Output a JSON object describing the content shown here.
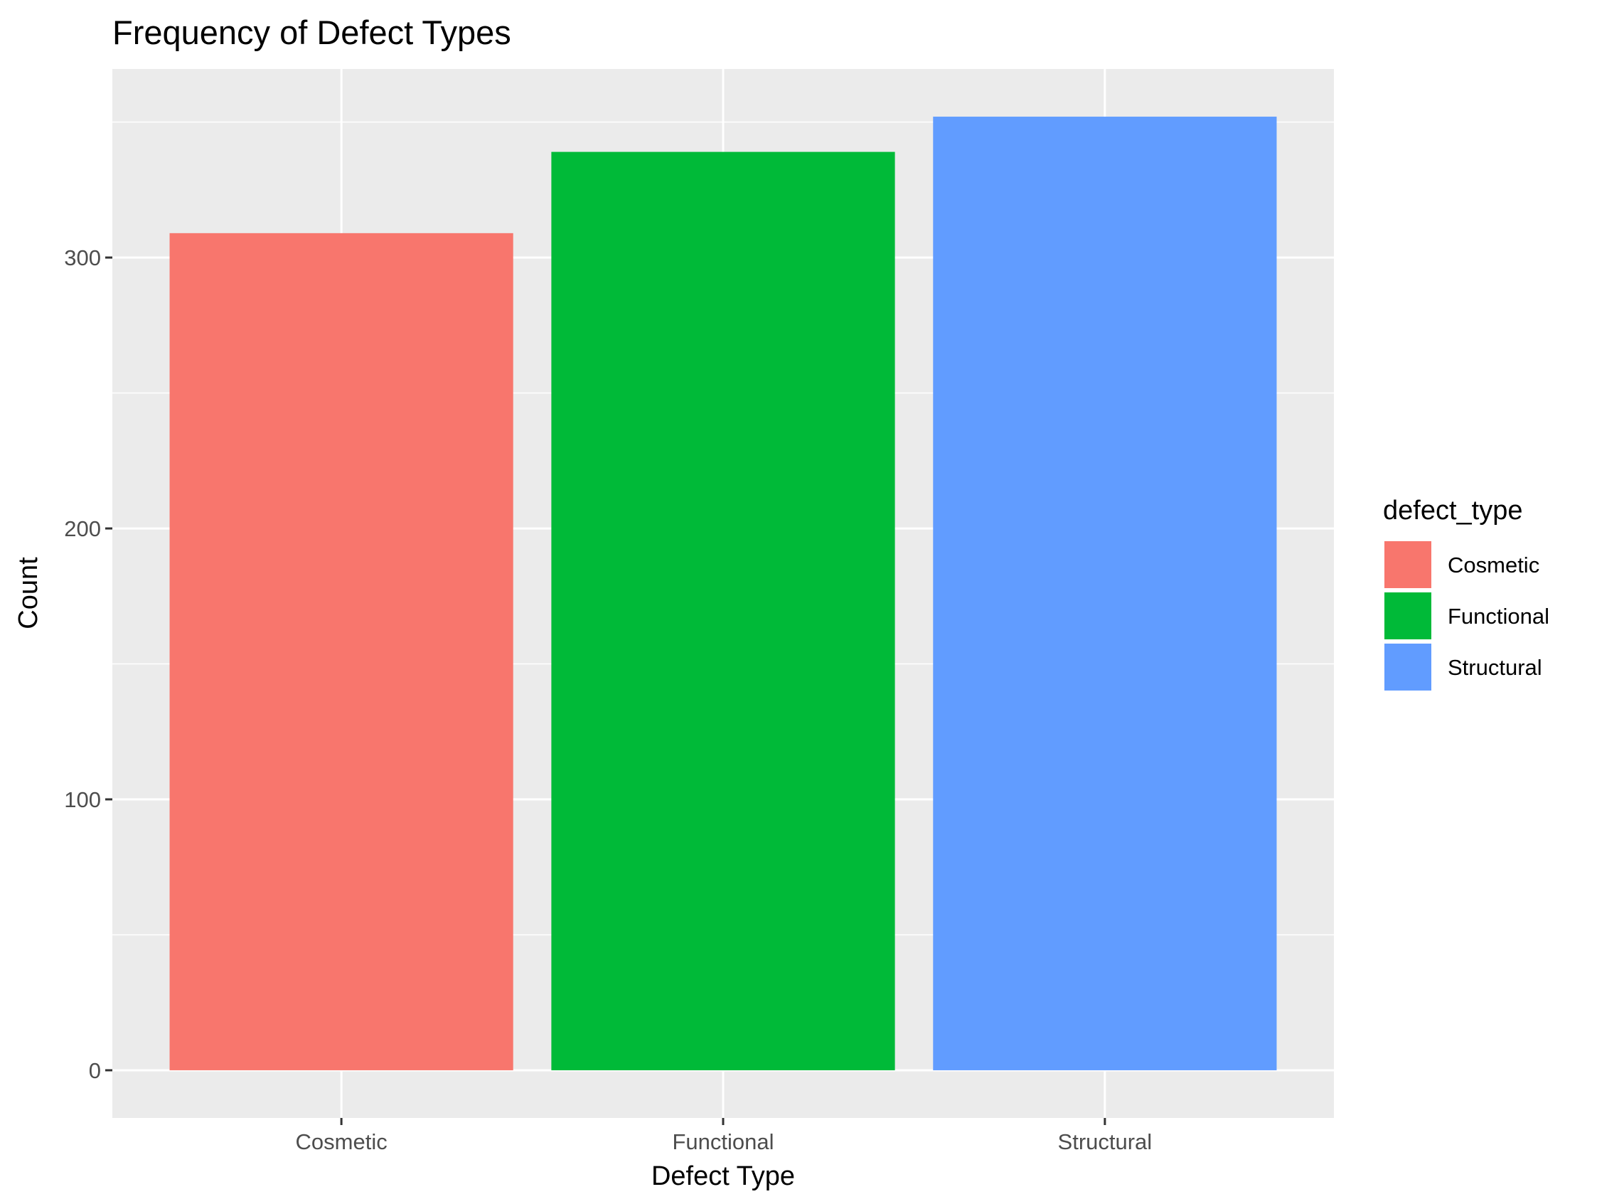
{
  "chart_data": {
    "type": "bar",
    "title": "Frequency of Defect Types",
    "xlabel": "Defect Type",
    "ylabel": "Count",
    "categories": [
      "Cosmetic",
      "Functional",
      "Structural"
    ],
    "values": [
      309,
      339,
      352
    ],
    "colors": [
      "#F8766D",
      "#00BA38",
      "#619CFF"
    ],
    "ylim": [
      -17.6,
      369.6
    ],
    "yticks": [
      0,
      100,
      200,
      300
    ],
    "ytick_labels": [
      "0",
      "100",
      "200",
      "300"
    ],
    "grid": true,
    "panel_background": "#EBEBEB",
    "legend": {
      "title": "defect_type",
      "position": "right",
      "entries": [
        "Cosmetic",
        "Functional",
        "Structural"
      ]
    }
  }
}
